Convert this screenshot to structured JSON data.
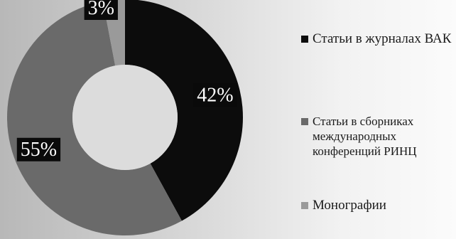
{
  "chart_data": {
    "type": "pie",
    "variant": "donut",
    "categories": [
      "Статьи в журналах ВАК",
      "Статьи в сборниках международных конференций РИНЦ",
      "Монографии"
    ],
    "values": [
      42,
      55,
      3
    ],
    "data_labels": [
      "42%",
      "55%",
      "3%"
    ],
    "colors": [
      "#0c0c0c",
      "#6a6a6a",
      "#9a9a9a"
    ],
    "legend_placement": "right",
    "legend": [
      {
        "label": "Статьи в журналах ВАК",
        "color": "#0c0c0c"
      },
      {
        "label": "Статьи в сборниках международных конференций РИНЦ",
        "color": "#6a6a6a"
      },
      {
        "label": "Монографии",
        "color": "#9a9a9a"
      }
    ]
  }
}
